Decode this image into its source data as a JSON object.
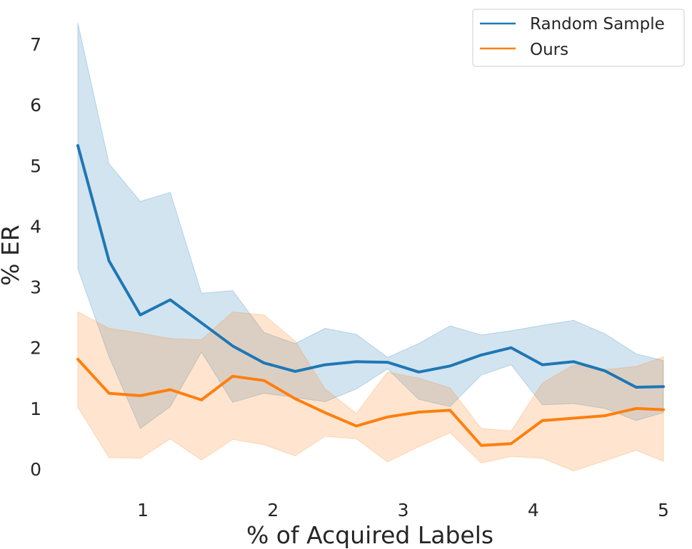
{
  "chart_data": {
    "type": "line",
    "title": "",
    "xlabel": "% of Acquired Labels",
    "ylabel": "% ER",
    "xlim": [
      0.45,
      5.05
    ],
    "ylim": [
      -0.7,
      7.6
    ],
    "xticks": [
      1,
      2,
      3,
      4,
      5
    ],
    "yticks": [
      0,
      1,
      2,
      3,
      4,
      5,
      6,
      7
    ],
    "grid": false,
    "legend": "top-right",
    "x": [
      0.5,
      0.74,
      0.98,
      1.21,
      1.45,
      1.69,
      1.93,
      2.17,
      2.4,
      2.64,
      2.88,
      3.12,
      3.36,
      3.6,
      3.83,
      4.07,
      4.31,
      4.55,
      4.79,
      5.0
    ],
    "series": [
      {
        "name": "Random Sample",
        "color": "#1f77b4",
        "values": [
          5.33,
          3.43,
          2.54,
          2.79,
          2.41,
          2.03,
          1.75,
          1.61,
          1.72,
          1.77,
          1.76,
          1.6,
          1.7,
          1.88,
          2.0,
          1.72,
          1.77,
          1.62,
          1.35,
          1.36
        ],
        "lower": [
          3.3,
          1.85,
          0.67,
          1.03,
          1.93,
          1.1,
          1.25,
          1.18,
          1.11,
          1.32,
          1.65,
          1.15,
          1.03,
          1.55,
          1.72,
          1.06,
          1.08,
          1.0,
          0.8,
          0.93
        ],
        "upper": [
          7.35,
          5.03,
          4.41,
          4.56,
          2.9,
          2.94,
          2.25,
          2.07,
          2.32,
          2.22,
          1.84,
          2.07,
          2.36,
          2.21,
          2.28,
          2.37,
          2.45,
          2.23,
          1.9,
          1.79
        ]
      },
      {
        "name": "Ours",
        "color": "#ff7f0e",
        "values": [
          1.81,
          1.25,
          1.21,
          1.31,
          1.14,
          1.53,
          1.46,
          1.16,
          0.93,
          0.71,
          0.86,
          0.94,
          0.97,
          0.39,
          0.42,
          0.8,
          0.84,
          0.88,
          1.0,
          0.98
        ],
        "lower": [
          1.02,
          0.19,
          0.18,
          0.5,
          0.15,
          0.49,
          0.4,
          0.22,
          0.54,
          0.5,
          0.12,
          0.37,
          0.6,
          0.1,
          0.21,
          0.18,
          -0.03,
          0.14,
          0.31,
          0.13
        ],
        "upper": [
          2.59,
          2.32,
          2.24,
          2.15,
          2.13,
          2.59,
          2.54,
          2.11,
          1.32,
          0.92,
          1.6,
          1.5,
          1.34,
          0.67,
          0.63,
          1.42,
          1.72,
          1.64,
          1.69,
          1.85
        ]
      }
    ]
  }
}
